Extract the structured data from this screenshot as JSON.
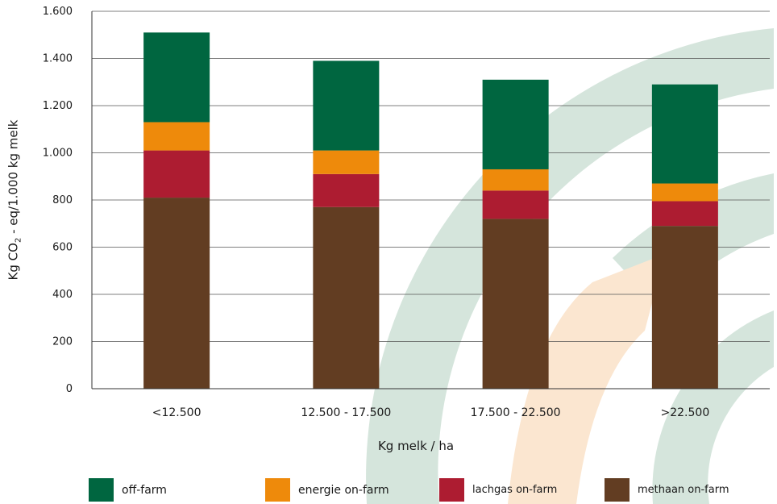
{
  "chart_data": {
    "type": "bar",
    "stacked": true,
    "title": "",
    "xlabel": "Kg melk / ha",
    "ylabel": "Kg CO₂ - eq/1.000 kg melk",
    "ylabel_parts": {
      "pre": "Kg CO",
      "sub": "2",
      "post": " - eq/1.000 kg melk"
    },
    "ylim": [
      0,
      1600
    ],
    "yticks": [
      0,
      200,
      400,
      600,
      800,
      1000,
      1200,
      1400,
      1600
    ],
    "ytick_labels": [
      "0",
      "200",
      "400",
      "600",
      "800",
      "1.000",
      "1.200",
      "1.400",
      "1.600"
    ],
    "grid": true,
    "legend_position": "bottom",
    "categories": [
      "<12.500",
      "12.500 - 17.500",
      "17.500 - 22.500",
      ">22.500"
    ],
    "series": [
      {
        "name": "methaan on-farm",
        "color": "#623d22",
        "values": [
          810,
          770,
          720,
          690
        ]
      },
      {
        "name": "lachgas on-farm",
        "color": "#ad1c31",
        "values": [
          200,
          140,
          120,
          105
        ]
      },
      {
        "name": "energie on-farm",
        "color": "#ee8a0b",
        "values": [
          120,
          100,
          90,
          75
        ]
      },
      {
        "name": "off-farm",
        "color": "#006640",
        "values": [
          380,
          380,
          380,
          420
        ]
      }
    ]
  },
  "legend": {
    "items": [
      {
        "name": "off-farm",
        "color": "#006640"
      },
      {
        "name": "energie on-farm",
        "color": "#ee8a0b"
      },
      {
        "name": "lachgas on-farm",
        "color": "#ad1c31"
      },
      {
        "name": "methaan on-farm",
        "color": "#623d22"
      }
    ]
  }
}
